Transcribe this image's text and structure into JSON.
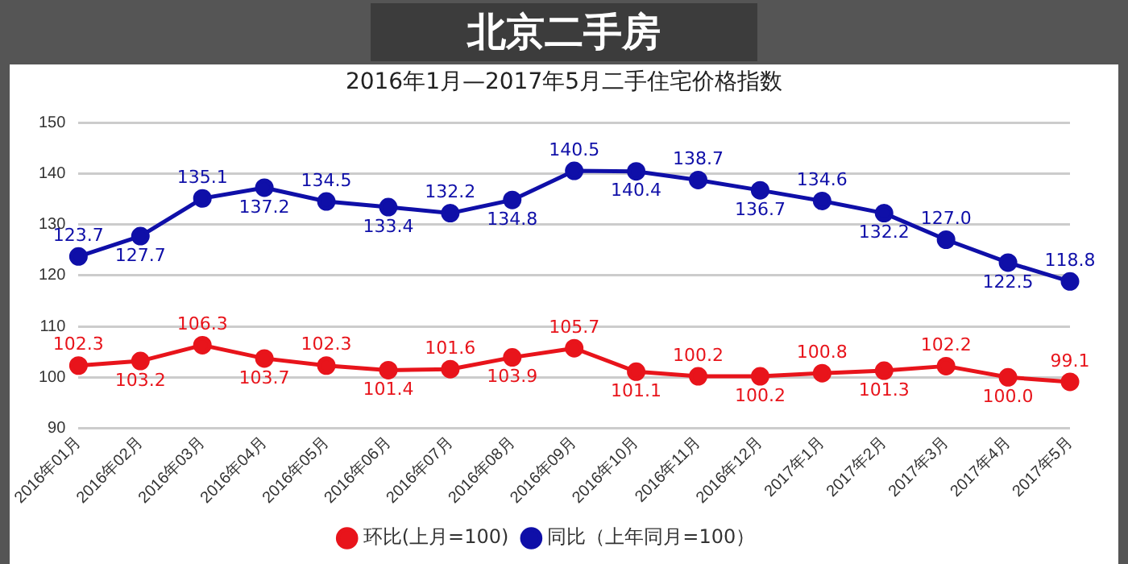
{
  "chart_data": {
    "type": "line",
    "title": "北京二手房",
    "subtitle": "2016年1月—2017年5月二手住宅价格指数",
    "categories": [
      "2016年01月",
      "2016年02月",
      "2016年03月",
      "2016年04月",
      "2016年05月",
      "2016年06月",
      "2016年07月",
      "2016年08月",
      "2016年09月",
      "2016年10月",
      "2016年11月",
      "2016年12月",
      "2017年1月",
      "2017年2月",
      "2017年3月",
      "2017年4月",
      "2017年5月"
    ],
    "series": [
      {
        "name": "环比(上月=100)",
        "color": "#e8141b",
        "values": [
          102.3,
          103.2,
          106.3,
          103.7,
          102.3,
          101.4,
          101.6,
          103.9,
          105.7,
          101.1,
          100.2,
          100.2,
          100.8,
          101.3,
          102.2,
          100.0,
          99.1
        ],
        "value_labels": [
          "102.3",
          "103.2",
          "106.3",
          "103.7",
          "102.3",
          "101.4",
          "101.6",
          "103.9",
          "105.7",
          "101.1",
          "100.2",
          "100.2",
          "100.8",
          "101.3",
          "102.2",
          "100.0",
          "99.1"
        ]
      },
      {
        "name": "同比（上年同月=100）",
        "color": "#0f0fa8",
        "values": [
          123.7,
          127.7,
          135.1,
          137.2,
          134.5,
          133.4,
          132.2,
          134.8,
          140.5,
          140.4,
          138.7,
          136.7,
          134.6,
          132.2,
          127.0,
          122.5,
          118.8
        ],
        "value_labels": [
          "123.7",
          "127.7",
          "135.1",
          "137.2",
          "134.5",
          "133.4",
          "132.2",
          "134.8",
          "140.5",
          "140.4",
          "138.7",
          "136.7",
          "134.6",
          "132.2",
          "127.0",
          "122.5",
          "118.8"
        ]
      }
    ],
    "ylim": [
      90,
      150
    ],
    "yticks": [
      90,
      100,
      110,
      120,
      130,
      140,
      150
    ],
    "grid": "y",
    "legend": "bottom",
    "marker": "circle",
    "line_style": "solid"
  }
}
